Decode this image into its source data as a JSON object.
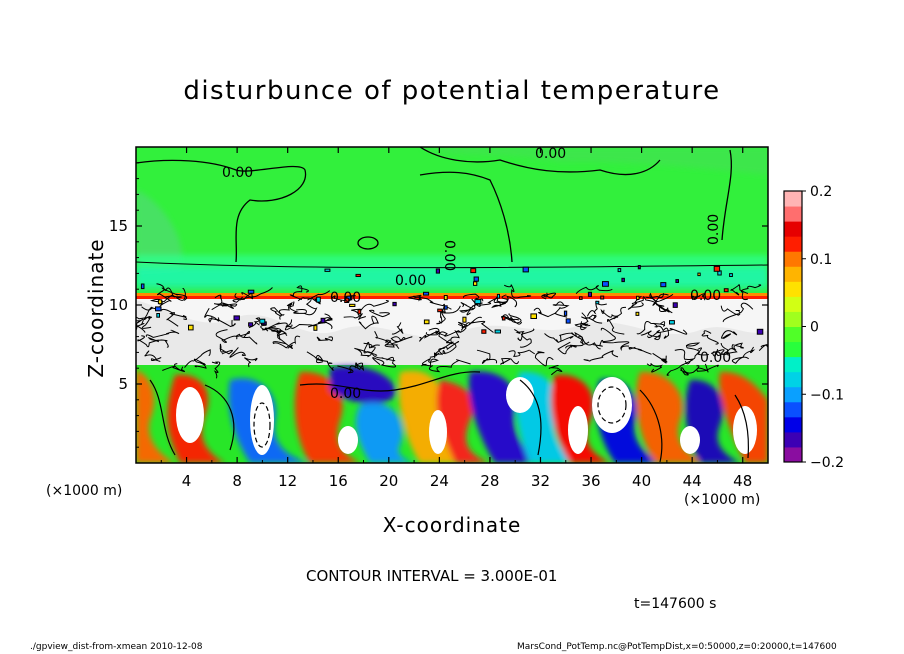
{
  "chart_data": {
    "type": "heatmap",
    "title": "disturbunce of potential temperature",
    "xlabel": "X-coordinate",
    "ylabel": "Z-coordinate",
    "x_unit_left": "(×1000 m)",
    "x_unit_right": "(×1000 m)",
    "xlim": [
      0,
      50
    ],
    "ylim": [
      0,
      20
    ],
    "x_ticks": [
      4,
      8,
      12,
      16,
      20,
      24,
      28,
      32,
      36,
      40,
      44,
      48
    ],
    "y_ticks": [
      5,
      10,
      15
    ],
    "colorbar": {
      "range": [
        -0.2,
        0.2
      ],
      "tick_labels": [
        "0.2",
        "0.1",
        "0",
        "−0.1",
        "−0.2"
      ],
      "tick_values": [
        0.2,
        0.1,
        0,
        -0.1,
        -0.2
      ],
      "colors": [
        "#8a0da0",
        "#3c00b4",
        "#0000e8",
        "#0a50ff",
        "#0aa0ff",
        "#00d2e6",
        "#00f0c8",
        "#28ff3c",
        "#50ff28",
        "#a0ff1e",
        "#d2ff14",
        "#ffe100",
        "#ffb400",
        "#ff7800",
        "#ff1e00",
        "#e60000",
        "#ff6e6e",
        "#ffb4b4"
      ]
    },
    "contour_labels": [
      "0.00",
      "0.00",
      "0.00",
      "0.00",
      "0.00",
      "0.00",
      "0.00",
      "0.00",
      "0.00"
    ],
    "contour_interval": "CONTOUR INTERVAL = 3.000E-01",
    "time": "t=147600 s"
  },
  "footer": {
    "left": "./gpview_dist-from-xmean   2010-12-08",
    "right": "MarsCond_PotTemp.nc@PotTempDist,x=0:50000,z=0:20000,t=147600"
  }
}
